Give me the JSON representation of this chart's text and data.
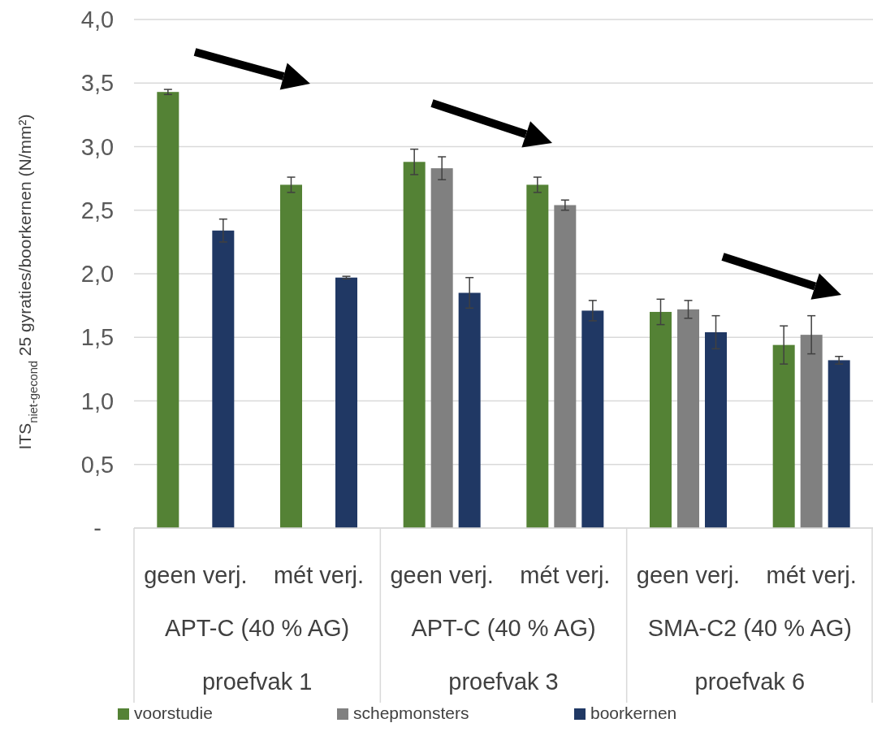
{
  "chart_data": {
    "type": "bar",
    "ylabel": "ITS$_{niet-gecond}$ 25 gyraties/boorkernen (N/mm²)",
    "categories": [
      "geen verj.",
      "mét verj.",
      "geen verj.",
      "mét verj.",
      "geen verj.",
      "mét verj."
    ],
    "annotations": [
      "APT-C (40 % AG)",
      "proefvak 1",
      "APT-C (40 % AG)",
      "proefvak 3",
      "SMA-C2 (40 % AG)",
      "proefvak 6"
    ],
    "series": [
      {
        "name": "voorstudie",
        "color": "#548235",
        "values": [
          3.43,
          2.7,
          2.88,
          2.7,
          1.7,
          1.44
        ],
        "errors": [
          0.02,
          0.06,
          0.1,
          0.06,
          0.1,
          0.15
        ]
      },
      {
        "name": "schepmonsters",
        "color": "#808080",
        "values": [
          null,
          null,
          2.83,
          2.54,
          1.72,
          1.52
        ],
        "errors": [
          null,
          null,
          0.09,
          0.04,
          0.07,
          0.15
        ]
      },
      {
        "name": "boorkernen",
        "color": "#203864",
        "values": [
          2.34,
          1.97,
          1.85,
          1.71,
          1.54,
          1.32
        ],
        "errors": [
          0.09,
          0.01,
          0.12,
          0.08,
          0.13,
          0.03
        ]
      }
    ],
    "ylim": [
      0,
      4
    ],
    "yticks": [
      {
        "value": 0,
        "label": "-"
      },
      {
        "value": 0.5,
        "label": "0,5"
      },
      {
        "value": 1,
        "label": "1,0"
      },
      {
        "value": 1.5,
        "label": "1,5"
      },
      {
        "value": 2,
        "label": "2,0"
      },
      {
        "value": 2.5,
        "label": "2,5"
      },
      {
        "value": 3,
        "label": "3,0"
      },
      {
        "value": 3.5,
        "label": "3,5"
      },
      {
        "value": 4,
        "label": "4,0"
      }
    ],
    "grid": "y",
    "legend": "bottom"
  }
}
